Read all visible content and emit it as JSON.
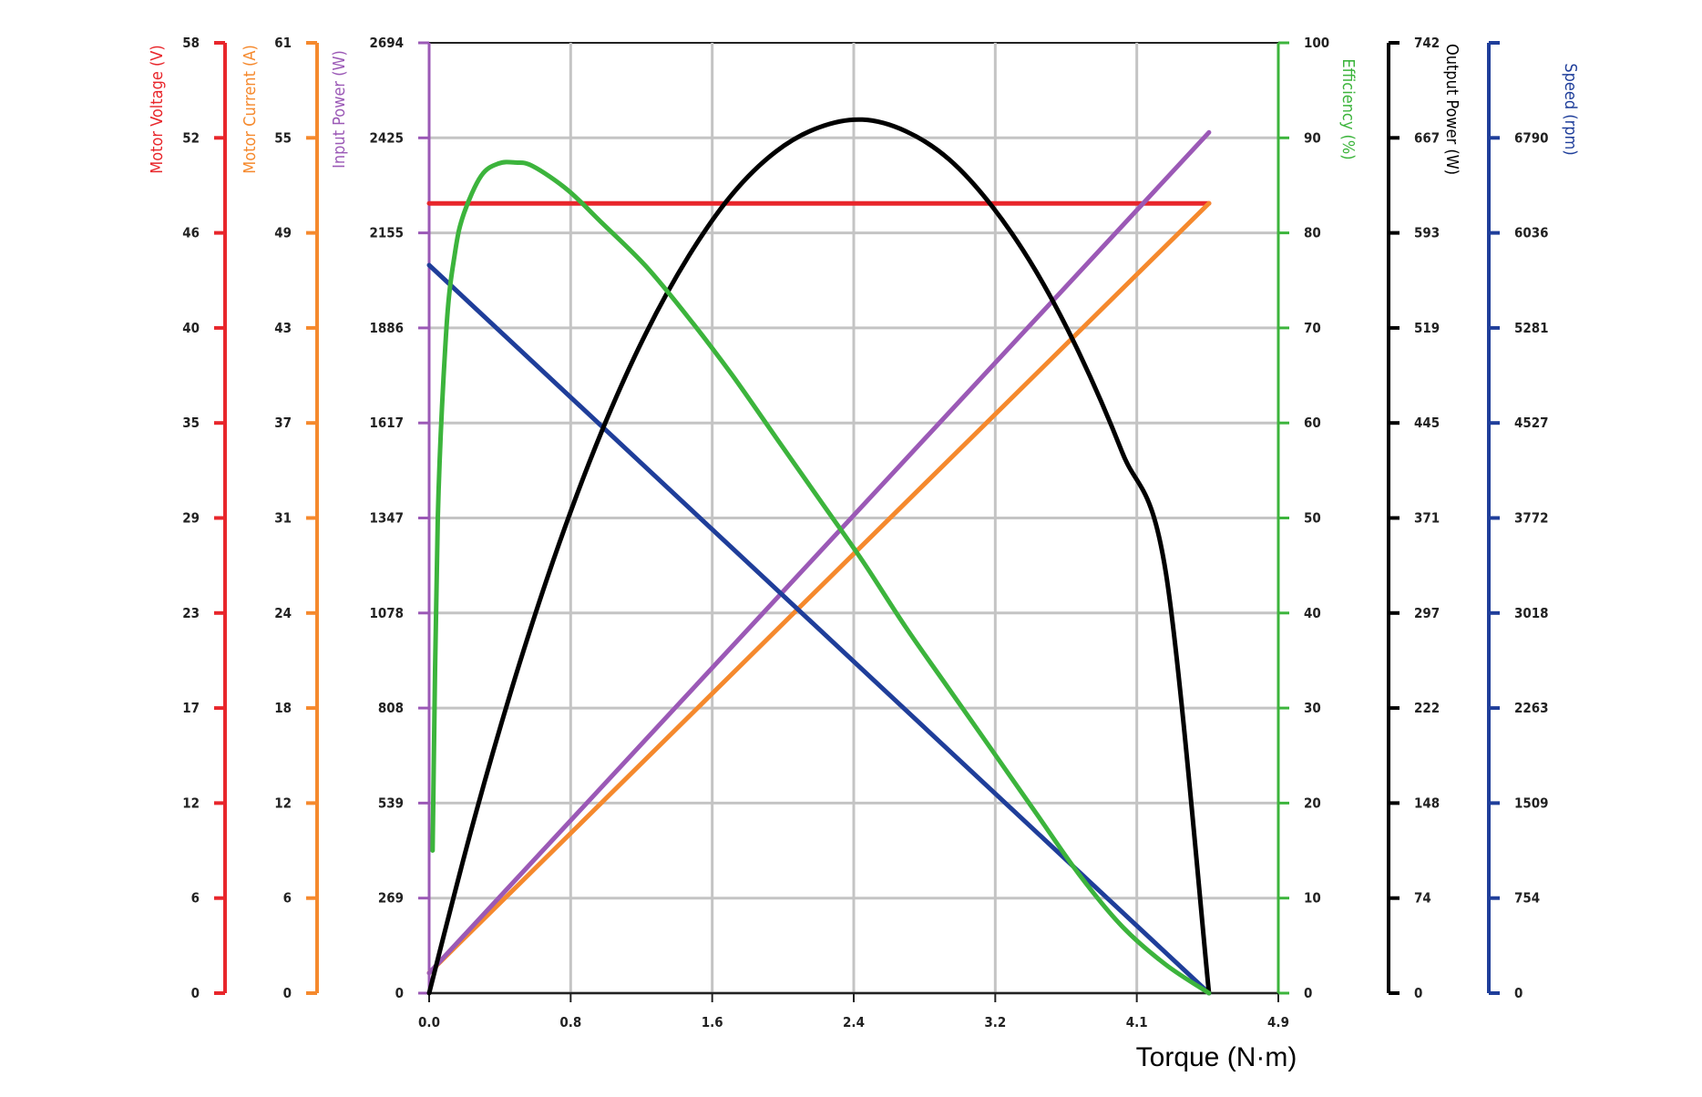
{
  "chart_data": {
    "type": "line",
    "xlabel": "Torque (N·m)",
    "xlim": [
      0,
      4.9
    ],
    "x_ticks": [
      "0.0",
      "0.8",
      "1.6",
      "2.4",
      "3.2",
      "4.1",
      "4.9"
    ],
    "grid": true,
    "axes": [
      {
        "id": "voltage",
        "label": "Motor Voltage (V)",
        "color": "#e8262b",
        "side": "left",
        "max": 58,
        "ticks": [
          "0",
          "6",
          "12",
          "17",
          "23",
          "29",
          "35",
          "40",
          "46",
          "52",
          "58"
        ]
      },
      {
        "id": "current",
        "label": "Motor Current (A)",
        "color": "#f5892d",
        "side": "left",
        "max": 61,
        "ticks": [
          "0",
          "6",
          "12",
          "18",
          "24",
          "31",
          "37",
          "43",
          "49",
          "55",
          "61"
        ]
      },
      {
        "id": "input_power",
        "label": "Input Power (W)",
        "color": "#9b59b6",
        "side": "left",
        "max": 2694,
        "ticks": [
          "0",
          "269",
          "539",
          "808",
          "1078",
          "1347",
          "1617",
          "1886",
          "2155",
          "2425",
          "2694"
        ]
      },
      {
        "id": "efficiency",
        "label": "Efficiency (%)",
        "color": "#3cb43c",
        "side": "right",
        "max": 100,
        "ticks": [
          "0",
          "10",
          "20",
          "30",
          "40",
          "50",
          "60",
          "70",
          "80",
          "90",
          "100"
        ]
      },
      {
        "id": "output_power",
        "label": "Output Power (W)",
        "color": "#000000",
        "side": "right",
        "max": 742,
        "ticks": [
          "0",
          "74",
          "148",
          "222",
          "297",
          "371",
          "445",
          "519",
          "593",
          "667",
          "742"
        ]
      },
      {
        "id": "speed",
        "label": "Speed (rpm)",
        "color": "#1f3e9a",
        "side": "right",
        "max": 7545,
        "ticks": [
          "0",
          "754",
          "1509",
          "2263",
          "3018",
          "3772",
          "4527",
          "5281",
          "6036",
          "6790",
          ""
        ]
      }
    ],
    "series": [
      {
        "name": "Motor Voltage",
        "axis": "voltage",
        "color": "#e8262b",
        "x": [
          0,
          4.5
        ],
        "y": [
          48.2,
          48.2
        ]
      },
      {
        "name": "Motor Current",
        "axis": "current",
        "color": "#f5892d",
        "x": [
          0,
          4.5
        ],
        "y": [
          1.3,
          50.7
        ]
      },
      {
        "name": "Input Power",
        "axis": "input_power",
        "color": "#9b59b6",
        "x": [
          0,
          4.5
        ],
        "y": [
          57,
          2440
        ]
      },
      {
        "name": "Speed",
        "axis": "speed",
        "color": "#1f3e9a",
        "x": [
          0,
          4.5
        ],
        "y": [
          5780,
          0
        ]
      },
      {
        "name": "Output Power",
        "axis": "output_power",
        "color": "#000000",
        "x": [
          0,
          0.25,
          0.5,
          0.75,
          1.0,
          1.25,
          1.5,
          1.75,
          2.0,
          2.25,
          2.5,
          2.75,
          3.0,
          3.25,
          3.5,
          3.75,
          4.0,
          4.25,
          4.5
        ],
        "y": [
          0,
          131,
          248,
          351,
          440,
          515,
          576,
          624,
          657,
          676,
          682,
          673,
          651,
          614,
          564,
          500,
          422,
          329,
          0
        ]
      },
      {
        "name": "Efficiency",
        "axis": "efficiency",
        "color": "#3cb43c",
        "x": [
          0.02,
          0.05,
          0.1,
          0.15,
          0.2,
          0.3,
          0.4,
          0.5,
          0.6,
          0.8,
          1.0,
          1.25,
          1.5,
          1.75,
          2.0,
          2.25,
          2.5,
          2.75,
          3.0,
          3.25,
          3.5,
          3.75,
          4.0,
          4.25,
          4.5
        ],
        "y": [
          15,
          50,
          70,
          78,
          82,
          86,
          87.3,
          87.4,
          87,
          84.5,
          81,
          76.5,
          71,
          65,
          58.5,
          52,
          45.5,
          38.5,
          32,
          25.5,
          19,
          12.5,
          7,
          3,
          0
        ]
      }
    ]
  }
}
